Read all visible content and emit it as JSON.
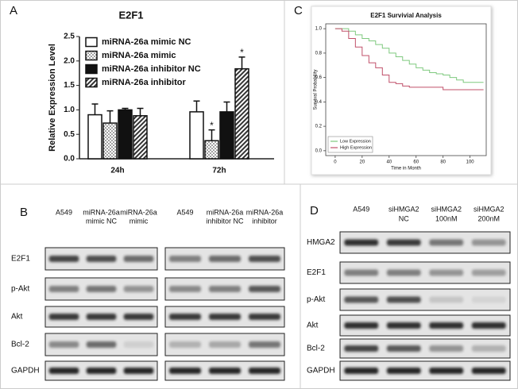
{
  "chart_data": [
    {
      "type": "bar",
      "panel": "A",
      "title": "E2F1",
      "ylabel": "Relative Expression Level",
      "categories": [
        "24h",
        "72h"
      ],
      "series": [
        {
          "name": "miRNA-26a mimic NC",
          "pattern": "white",
          "values": [
            0.9,
            0.96
          ],
          "errors": [
            0.22,
            0.22
          ],
          "annotations": [
            null,
            null
          ]
        },
        {
          "name": "miRNA-26a mimic",
          "pattern": "dots",
          "values": [
            0.73,
            0.37
          ],
          "errors": [
            0.25,
            0.22
          ],
          "annotations": [
            null,
            "*"
          ]
        },
        {
          "name": "miRNA-26a inhibitor NC",
          "pattern": "black",
          "values": [
            1.0,
            0.96
          ],
          "errors": [
            0.03,
            0.2
          ],
          "annotations": [
            null,
            null
          ]
        },
        {
          "name": "miRNA-26a inhibitor",
          "pattern": "hatch",
          "values": [
            0.88,
            1.84
          ],
          "errors": [
            0.15,
            0.24
          ],
          "annotations": [
            null,
            "*"
          ]
        }
      ],
      "ylim": [
        0,
        2.5
      ],
      "yticks": [
        {
          "value": 0,
          "label": "0.0"
        },
        0.5,
        {
          "value": 1,
          "label": "1.0"
        },
        1.5,
        {
          "value": 2,
          "label": "2.0"
        },
        2.5
      ],
      "legend": "upper left"
    },
    {
      "type": "line",
      "panel": "C",
      "title": "E2F1 Survivial Analysis",
      "xlabel": "Time in Month",
      "ylabel": "Survival Probability",
      "series": [
        {
          "name": "Low Expression",
          "color": "#7fc97f",
          "x": [
            0,
            5,
            10,
            15,
            20,
            25,
            30,
            35,
            40,
            45,
            50,
            55,
            60,
            65,
            70,
            75,
            80,
            85,
            90,
            95,
            100,
            110
          ],
          "values": [
            1.0,
            1.0,
            0.98,
            0.95,
            0.92,
            0.9,
            0.87,
            0.84,
            0.8,
            0.77,
            0.74,
            0.71,
            0.68,
            0.66,
            0.64,
            0.63,
            0.62,
            0.6,
            0.58,
            0.56,
            0.56,
            0.56
          ]
        },
        {
          "name": "High Expression",
          "color": "#c0506a",
          "x": [
            0,
            5,
            10,
            15,
            20,
            25,
            30,
            35,
            40,
            45,
            50,
            55,
            60,
            70,
            80,
            90,
            100,
            110
          ],
          "values": [
            1.0,
            0.98,
            0.92,
            0.85,
            0.78,
            0.72,
            0.68,
            0.62,
            0.56,
            0.55,
            0.53,
            0.52,
            0.52,
            0.52,
            0.5,
            0.5,
            0.5,
            0.5
          ]
        }
      ],
      "xlim": [
        -7,
        112
      ],
      "xticks": [
        0,
        20,
        40,
        60,
        80,
        100
      ],
      "ylim": [
        -0.04,
        1.04
      ],
      "yticks": [
        {
          "value": 0,
          "label": "0.0"
        },
        0.2,
        0.4,
        0.6,
        0.8,
        {
          "value": 1,
          "label": "1.0"
        }
      ],
      "legend": "lower left"
    }
  ],
  "blots": [
    {
      "panel": "B",
      "groups": [
        {
          "lanes": [
            [
              "A549"
            ],
            [
              "miRNA-26a",
              "mimic  NC"
            ],
            [
              "miRNA-26a",
              "mimic"
            ]
          ]
        },
        {
          "lanes": [
            [
              "A549"
            ],
            [
              "miRNA-26a",
              "inhibitor NC"
            ],
            [
              "miRNA-26a",
              "inhibitor"
            ]
          ]
        }
      ],
      "rows": [
        "E2F1",
        "p-Akt",
        "Akt",
        "Bcl-2",
        "GAPDH"
      ]
    },
    {
      "panel": "D",
      "groups": [
        {
          "lanes": [
            [
              "A549"
            ],
            [
              "siHMGA2",
              "NC"
            ],
            [
              "siHMGA2",
              "100nM"
            ],
            [
              "siHMGA2",
              "200nM"
            ]
          ]
        }
      ],
      "rows": [
        "HMGA2",
        "E2F1",
        "p-Akt",
        "Akt",
        "Bcl-2",
        "GAPDH"
      ]
    }
  ]
}
